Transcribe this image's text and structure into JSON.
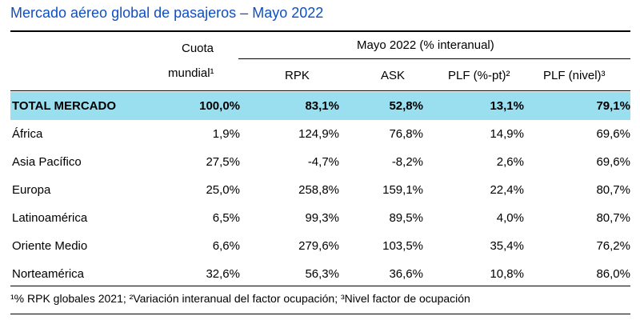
{
  "title": "Mercado aéreo global de pasajeros – Mayo 2022",
  "header": {
    "cuota_line1": "Cuota",
    "cuota_line2": "mundial¹",
    "group": "Mayo 2022 (% interanual)",
    "rpk": "RPK",
    "ask": "ASK",
    "plf_pt": "PLF (%-pt)²",
    "plf_nivel": "PLF (nivel)³"
  },
  "rows": [
    {
      "label": "TOTAL MERCADO",
      "cuota": "100,0%",
      "rpk": "83,1%",
      "ask": "52,8%",
      "plf_pt": "13,1%",
      "plf_nivel": "79,1%"
    },
    {
      "label": "África",
      "cuota": "1,9%",
      "rpk": "124,9%",
      "ask": "76,8%",
      "plf_pt": "14,9%",
      "plf_nivel": "69,6%"
    },
    {
      "label": "Asia Pacífico",
      "cuota": "27,5%",
      "rpk": "-4,7%",
      "ask": "-8,2%",
      "plf_pt": "2,6%",
      "plf_nivel": "69,6%"
    },
    {
      "label": "Europa",
      "cuota": "25,0%",
      "rpk": "258,8%",
      "ask": "159,1%",
      "plf_pt": "22,4%",
      "plf_nivel": "80,7%"
    },
    {
      "label": "Latinoamérica",
      "cuota": "6,5%",
      "rpk": "99,3%",
      "ask": "89,5%",
      "plf_pt": "4,0%",
      "plf_nivel": "80,7%"
    },
    {
      "label": "Oriente Medio",
      "cuota": "6,6%",
      "rpk": "279,6%",
      "ask": "103,5%",
      "plf_pt": "35,4%",
      "plf_nivel": "76,2%"
    },
    {
      "label": "Norteamérica",
      "cuota": "32,6%",
      "rpk": "56,3%",
      "ask": "36,6%",
      "plf_pt": "10,8%",
      "plf_nivel": "86,0%"
    }
  ],
  "footnote": "¹% RPK globales 2021; ²Variación interanual del factor ocupación; ³Nivel factor de ocupación",
  "colors": {
    "title": "#0f4fc4",
    "total_row_bg": "#99dff0"
  }
}
